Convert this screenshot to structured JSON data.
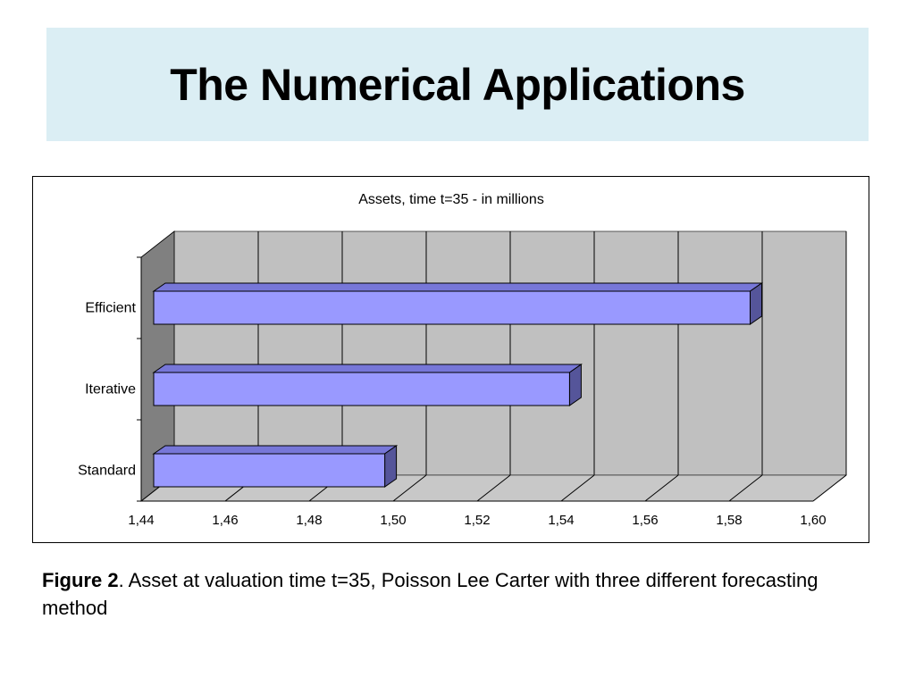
{
  "slide": {
    "title": "The Numerical Applications"
  },
  "caption": {
    "label": "Figure 2",
    "text": ". Asset at valuation time t=35, Poisson Lee Carter with three different forecasting method"
  },
  "colors": {
    "title_band": "#dbeef4",
    "bar_front": "#9999ff",
    "bar_side": "#55559a",
    "bar_top": "#7777d8",
    "plot_back": "#c0c0c0",
    "plot_floor": "#c8c8c8",
    "plot_wall": "#808080"
  },
  "chart_data": {
    "type": "bar",
    "orientation": "horizontal",
    "style": "3d",
    "title": "Assets, time t=35 - in millions",
    "categories": [
      "Standard",
      "Iterative",
      "Efficient"
    ],
    "values": [
      1.498,
      1.542,
      1.585
    ],
    "xlim": [
      1.44,
      1.6
    ],
    "xticks": [
      "1,44",
      "1,46",
      "1,48",
      "1,50",
      "1,52",
      "1,54",
      "1,56",
      "1,58",
      "1,60"
    ],
    "grid": true,
    "legend": "none"
  }
}
